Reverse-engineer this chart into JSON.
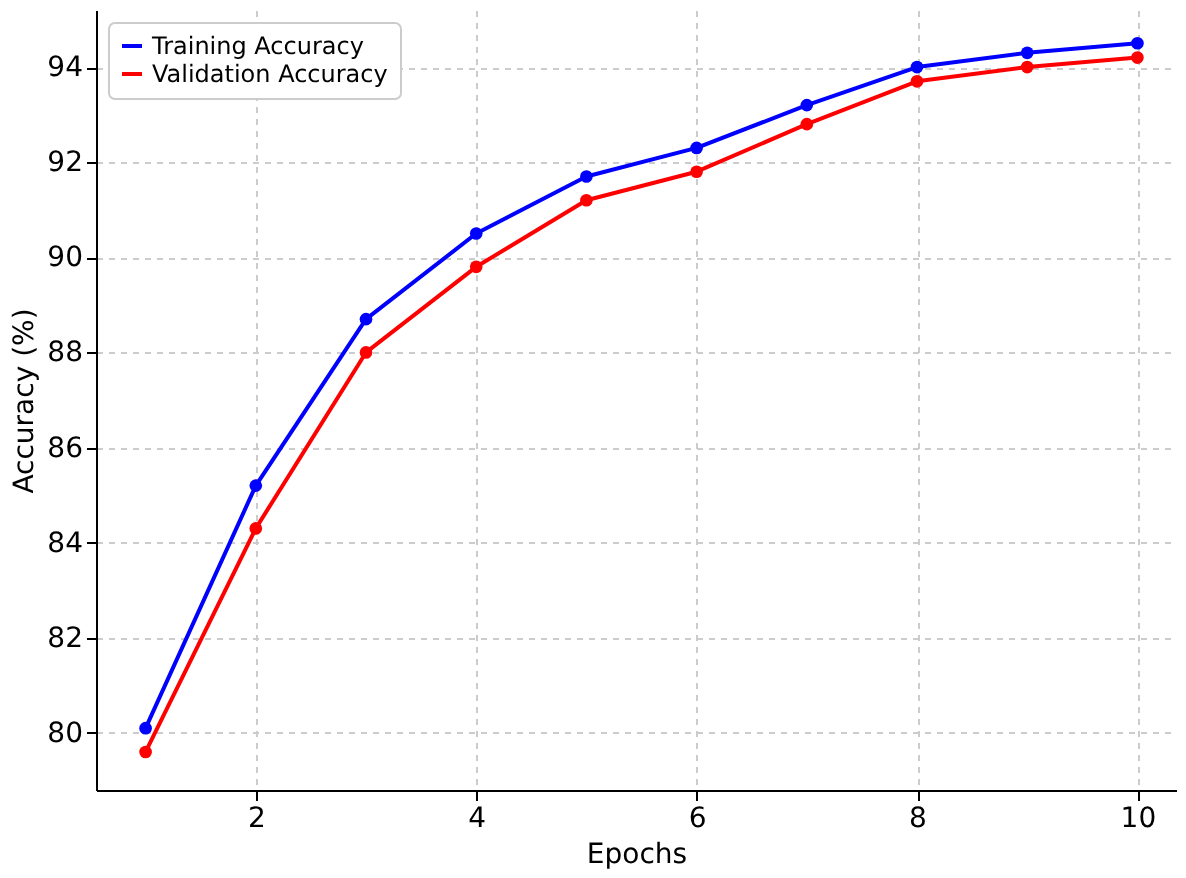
{
  "chart_data": {
    "type": "line",
    "xlabel": "Epochs",
    "ylabel": "Accuracy (%)",
    "x": [
      1,
      2,
      3,
      4,
      5,
      6,
      7,
      8,
      9,
      10
    ],
    "series": [
      {
        "name": "Training Accuracy",
        "color": "#0000ff",
        "values": [
          80.1,
          85.2,
          88.7,
          90.5,
          91.7,
          92.3,
          93.2,
          94.0,
          94.3,
          94.5
        ]
      },
      {
        "name": "Validation Accuracy",
        "color": "#ff0000",
        "values": [
          79.6,
          84.3,
          88.0,
          89.8,
          91.2,
          91.8,
          92.8,
          93.7,
          94.0,
          94.2
        ]
      }
    ],
    "xlim": [
      0.55,
      10.35
    ],
    "xticks": [
      2,
      4,
      6,
      8,
      10
    ],
    "ylim": [
      78.8,
      95.2
    ],
    "yticks": [
      80,
      82,
      84,
      86,
      88,
      90,
      92,
      94
    ],
    "grid": true,
    "legend": "top left",
    "marker": "circle",
    "line_style": "solid"
  }
}
